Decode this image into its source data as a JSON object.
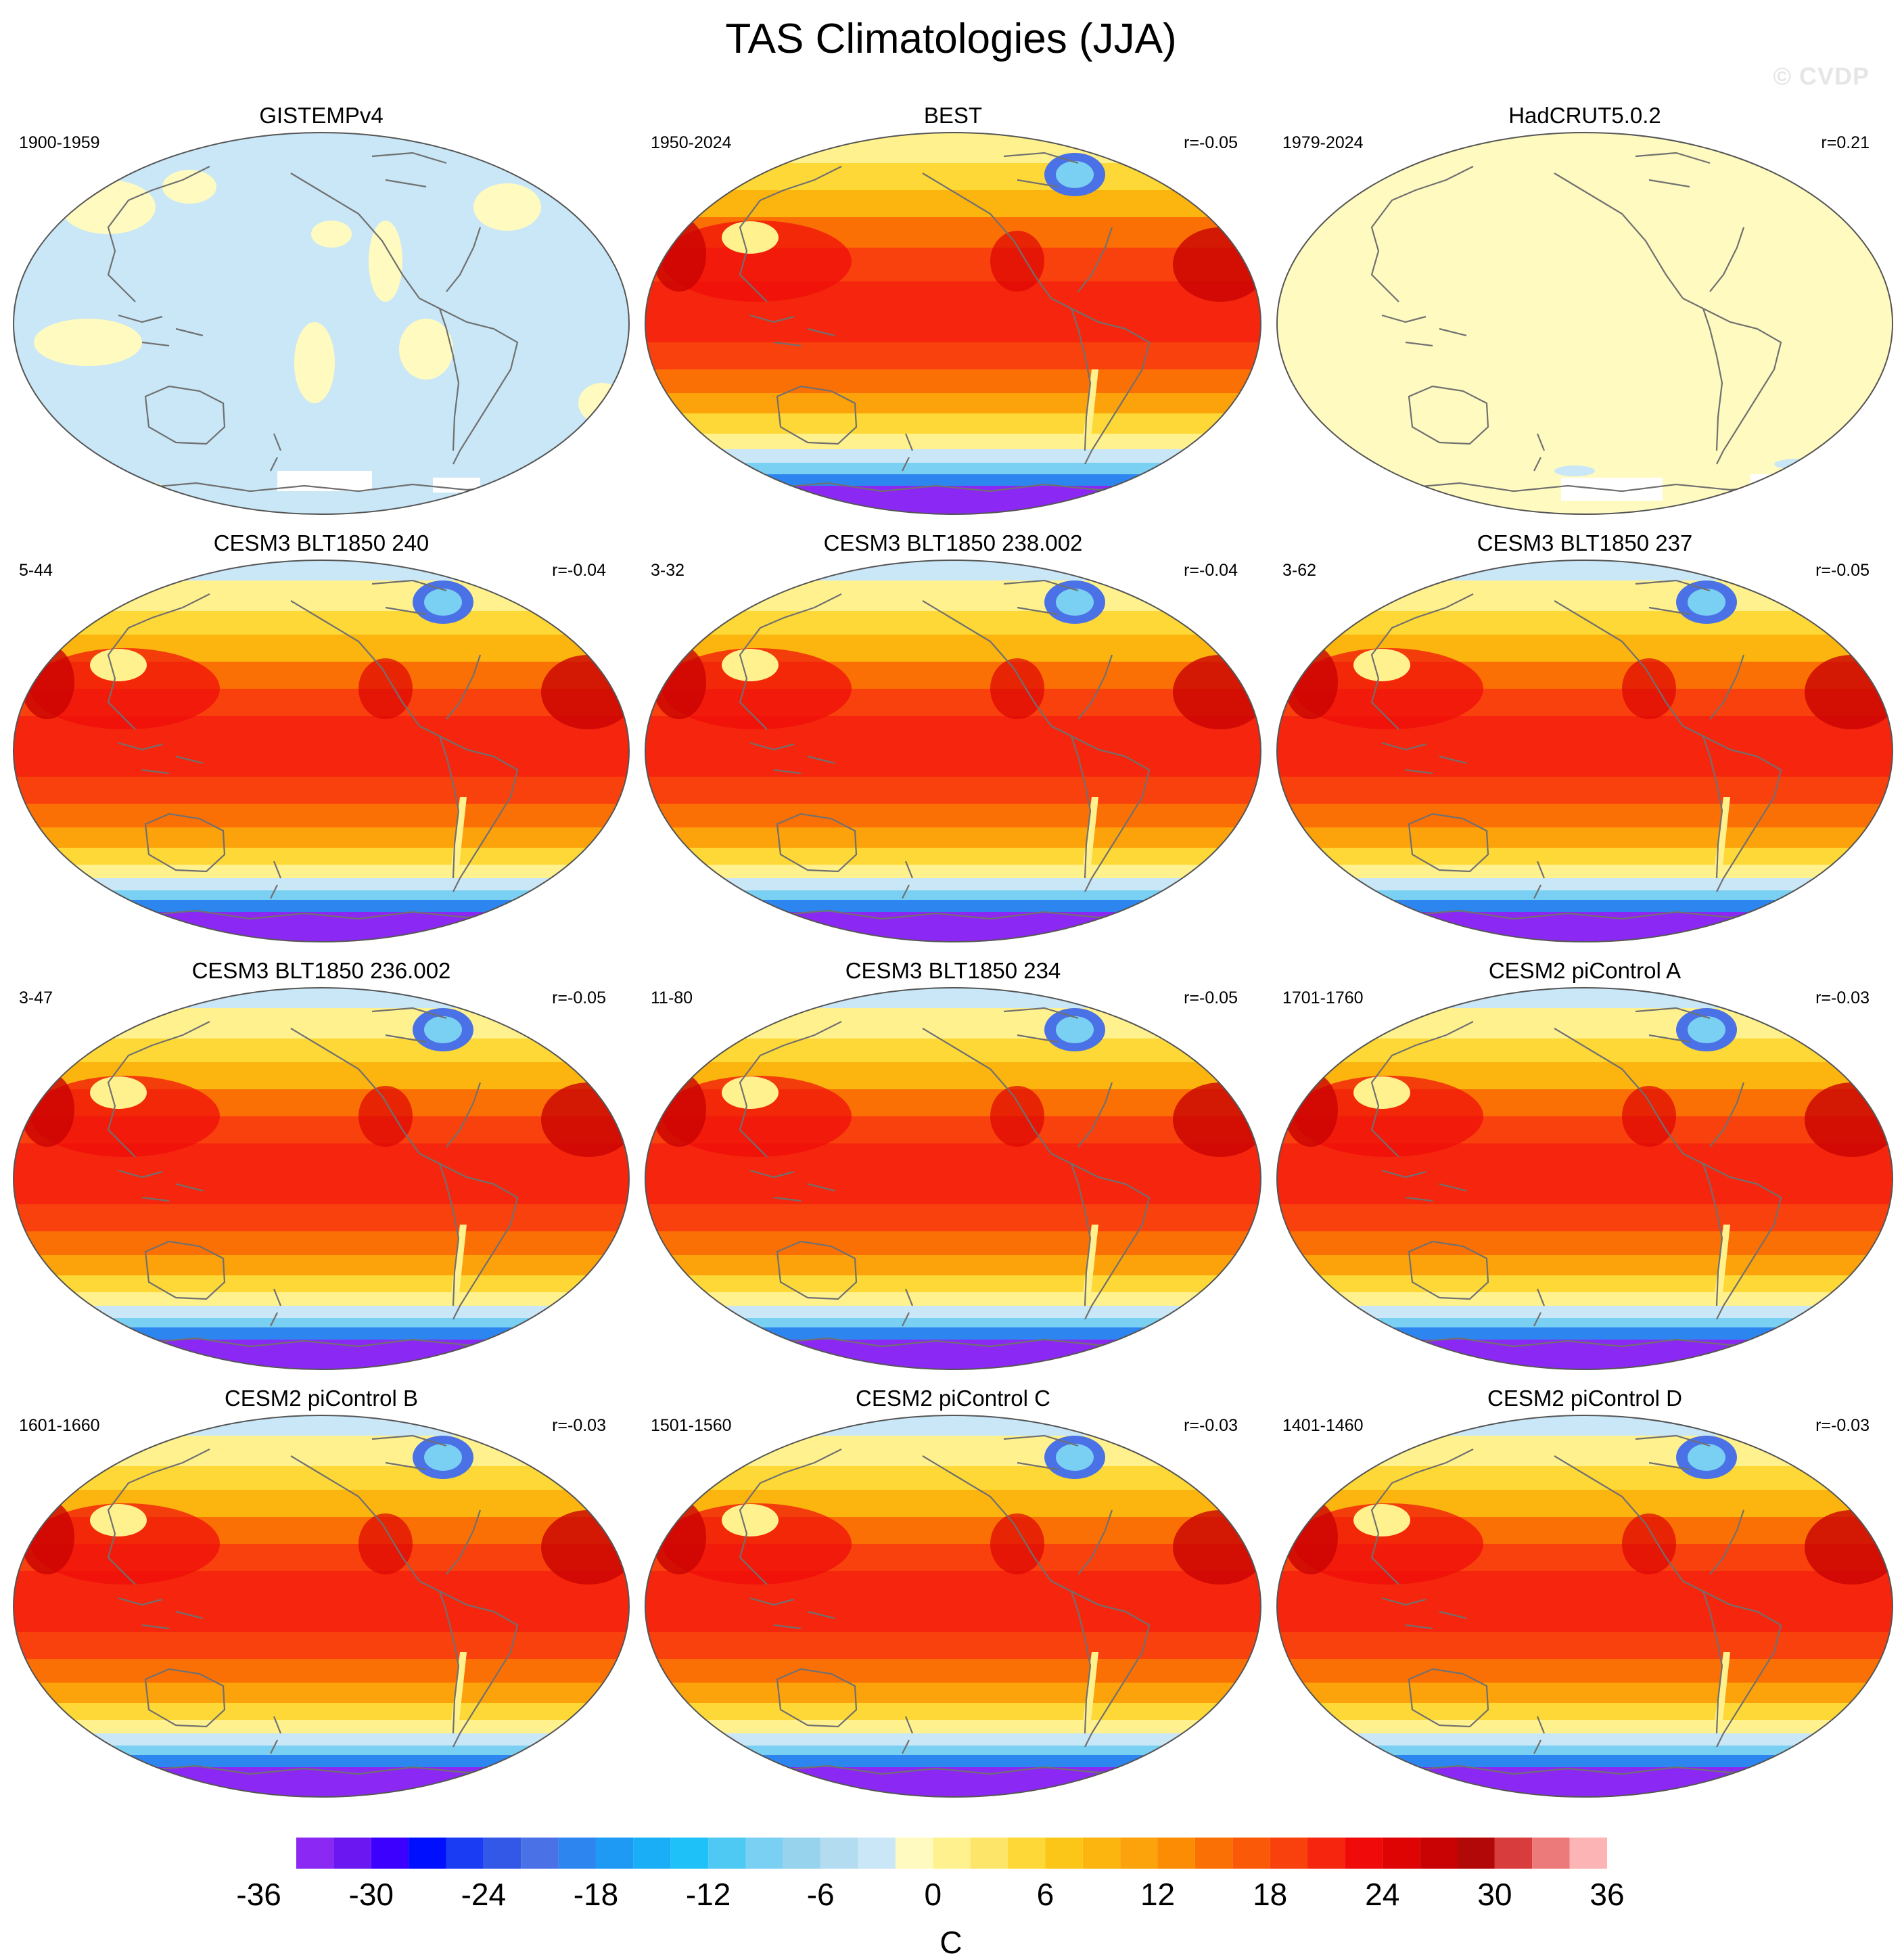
{
  "title": "TAS Climatologies (JJA)",
  "watermark": "© CVDP",
  "panels": [
    {
      "title": "GISTEMPv4",
      "period": "1900-1959",
      "corr": "",
      "style": "gistemp"
    },
    {
      "title": "BEST",
      "period": "1950-2024",
      "corr": "r=-0.05",
      "style": "best"
    },
    {
      "title": "HadCRUT5.0.2",
      "period": "1979-2024",
      "corr": "r=0.21",
      "style": "hadcrut"
    },
    {
      "title": "CESM3 BLT1850 240",
      "period": "5-44",
      "corr": "r=-0.04",
      "style": "model"
    },
    {
      "title": "CESM3 BLT1850 238.002",
      "period": "3-32",
      "corr": "r=-0.04",
      "style": "model"
    },
    {
      "title": "CESM3 BLT1850 237",
      "period": "3-62",
      "corr": "r=-0.05",
      "style": "model"
    },
    {
      "title": "CESM3 BLT1850 236.002",
      "period": "3-47",
      "corr": "r=-0.05",
      "style": "model"
    },
    {
      "title": "CESM3 BLT1850 234",
      "period": "11-80",
      "corr": "r=-0.05",
      "style": "model"
    },
    {
      "title": "CESM2 piControl A",
      "period": "1701-1760",
      "corr": "r=-0.03",
      "style": "model"
    },
    {
      "title": "CESM2 piControl B",
      "period": "1601-1660",
      "corr": "r=-0.03",
      "style": "model"
    },
    {
      "title": "CESM2 piControl C",
      "period": "1501-1560",
      "corr": "r=-0.03",
      "style": "model"
    },
    {
      "title": "CESM2 piControl D",
      "period": "1401-1460",
      "corr": "r=-0.03",
      "style": "model"
    }
  ],
  "colorbar": {
    "units": "C",
    "tick_labels": [
      "-36",
      "-30",
      "-24",
      "-18",
      "-12",
      "-6",
      "0",
      "6",
      "12",
      "18",
      "24",
      "30",
      "36"
    ],
    "colors": [
      "#8c28f4",
      "#6a17f2",
      "#3c00ff",
      "#0010ff",
      "#1a3cf2",
      "#3358e8",
      "#4a72e6",
      "#2d86f0",
      "#1e9af5",
      "#1aaef7",
      "#1ec2f8",
      "#4ec9f4",
      "#7ad0f2",
      "#98d3ee",
      "#b3dcf0",
      "#c9e7f7",
      "#fffac0",
      "#fff28e",
      "#fde569",
      "#fdd836",
      "#fcc619",
      "#fcb40f",
      "#fca20a",
      "#fc8c04",
      "#fb7005",
      "#fa5a08",
      "#f9410e",
      "#f5260d",
      "#f00a0a",
      "#de0404",
      "#c90303",
      "#b30808",
      "#d83c3c",
      "#ec7a7a",
      "#fcb4b4"
    ]
  }
}
